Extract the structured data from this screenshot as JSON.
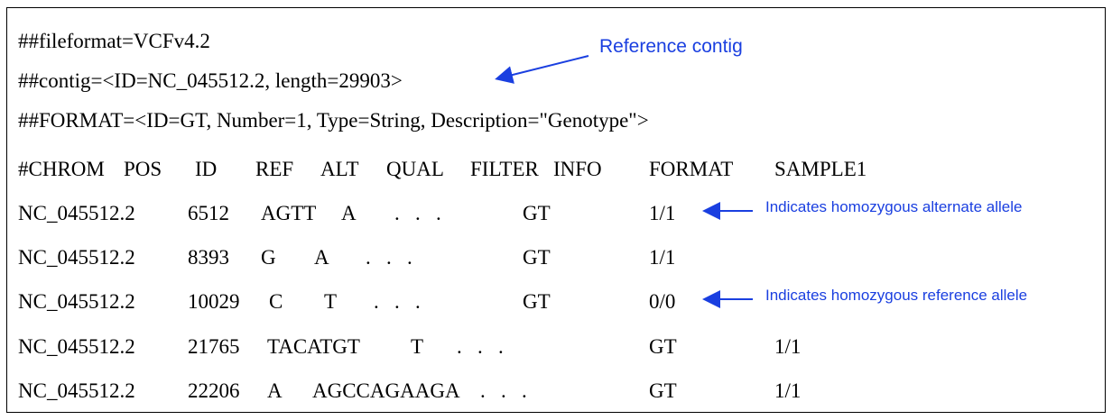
{
  "header_lines": [
    "##fileformat=VCFv4.2",
    "##contig=<ID=NC_045512.2, length=29903>",
    "##FORMAT=<ID=GT, Number=1, Type=String, Description=\"Genotype\">"
  ],
  "columns": [
    "#CHROM",
    "POS",
    "ID",
    "REF",
    "ALT",
    "QUAL",
    "FILTER",
    "INFO",
    "FORMAT",
    "SAMPLE1"
  ],
  "rows": [
    {
      "chrom": "NC_045512.2",
      "pos": "6512",
      "ref": "AGTT",
      "alt": "A",
      "dots": ".   .   .",
      "format": "GT",
      "sample": "1/1"
    },
    {
      "chrom": "NC_045512.2",
      "pos": "8393",
      "ref": "G",
      "alt": "A",
      "dots": ".   .   .",
      "format": "GT",
      "sample": "1/1"
    },
    {
      "chrom": "NC_045512.2",
      "pos": "10029",
      "ref": "C",
      "alt": "T",
      "dots": ".   .   .",
      "format": "GT",
      "sample": "0/0"
    },
    {
      "chrom": "NC_045512.2",
      "pos": "21765",
      "ref": "TACATGT",
      "alt": "T",
      "dots": ".   .   .",
      "format": "GT",
      "sample": "1/1"
    },
    {
      "chrom": "NC_045512.2",
      "pos": "22206",
      "ref": "A",
      "alt": "AGCCAGAAGA",
      "dots": ".   .   .",
      "format": "GT",
      "sample": "1/1"
    }
  ],
  "annotations": {
    "reference_contig": "Reference contig",
    "homozygous_alt": "Indicates homozygous alternate allele",
    "homozygous_ref": "Indicates homozygous reference allele"
  },
  "colors": {
    "annotation": "#1a3fe0",
    "text": "#000000",
    "border": "#000000"
  }
}
